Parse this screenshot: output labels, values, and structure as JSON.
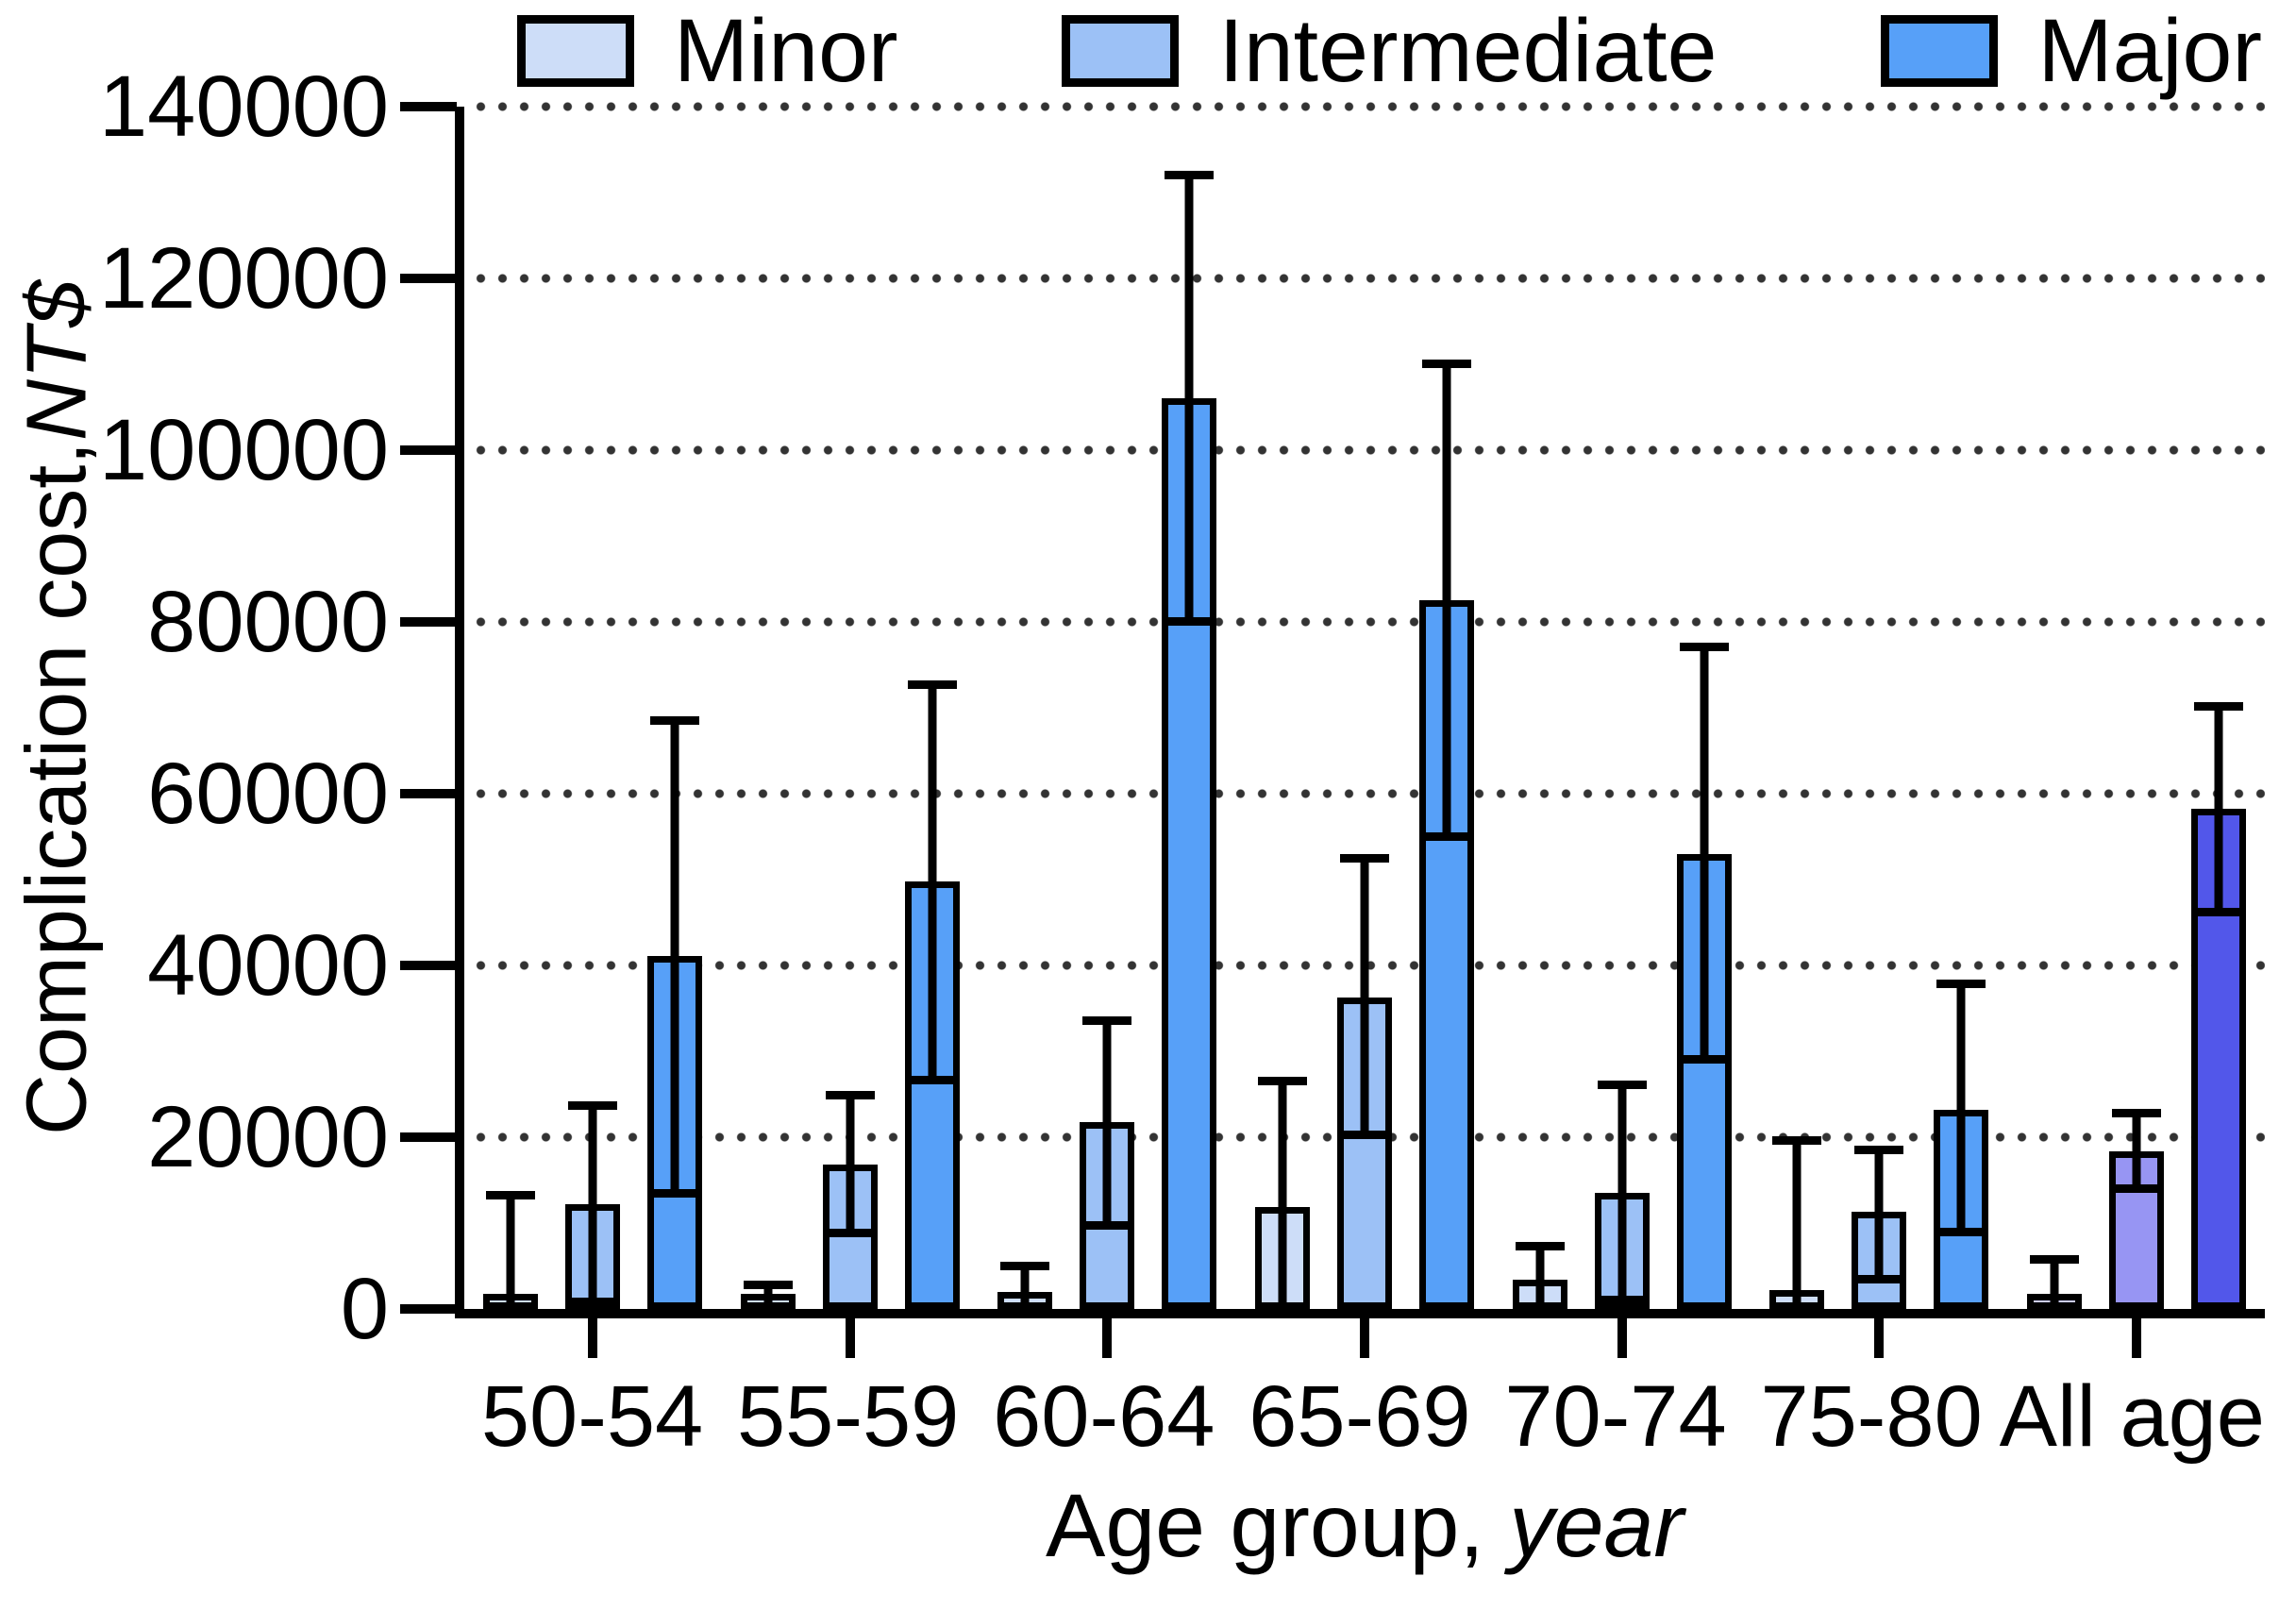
{
  "y_axis": {
    "title_regular": "Complication cost, ",
    "title_italic": "NT$",
    "tick_values": [
      0,
      20000,
      40000,
      60000,
      80000,
      100000,
      120000,
      140000
    ]
  },
  "x_axis": {
    "title_regular": "Age group, ",
    "title_italic": "year"
  },
  "legend": {
    "items": [
      "Minor",
      "Intermediate",
      "Major"
    ]
  },
  "colors": {
    "minor": "#cdddf8",
    "intermediate": "#9cc1f6",
    "major": "#57a0f8",
    "all_age_minor": "#cccdf8",
    "all_age_intermediate": "#9795f3",
    "all_age_major": "#5257ea",
    "axis": "#000000",
    "gridline_dot": "#333333"
  },
  "chart_data": {
    "type": "bar",
    "title": "",
    "xlabel": "Age group, year",
    "ylabel": "Complication cost, NT$",
    "ylim": [
      0,
      140000
    ],
    "ytick_step": 20000,
    "grid": "horizontal dotted",
    "legend_position": "top",
    "error_bars": true,
    "categories": [
      "50-54",
      "55-59",
      "60-64",
      "65-69",
      "70-74",
      "75-80",
      "All age"
    ],
    "series": [
      {
        "name": "Minor",
        "color": "#cdddf8",
        "all_age_color": "#cccdf8",
        "values": [
          1000,
          1400,
          2000,
          11900,
          3400,
          2200,
          1600
        ],
        "err_high": [
          13200,
          2800,
          5000,
          26500,
          7200,
          19600,
          5700
        ],
        "err_low": [
          null,
          null,
          null,
          null,
          null,
          null,
          null
        ]
      },
      {
        "name": "Intermediate",
        "color": "#9cc1f6",
        "all_age_color": "#9795f3",
        "values": [
          12200,
          16800,
          21800,
          36300,
          13500,
          11300,
          18400
        ],
        "err_high": [
          23600,
          24800,
          33500,
          52400,
          26000,
          18500,
          22800
        ],
        "err_low": [
          800,
          8800,
          9700,
          20200,
          1000,
          3400,
          14000
        ]
      },
      {
        "name": "Major",
        "color": "#57a0f8",
        "all_age_color": "#5257ea",
        "values": [
          41100,
          49800,
          106000,
          82500,
          53000,
          23200,
          58200
        ],
        "err_high": [
          68500,
          72600,
          132000,
          110000,
          77000,
          37800,
          70100
        ],
        "err_low": [
          13400,
          26600,
          80000,
          55000,
          29000,
          8900,
          46200
        ]
      }
    ]
  }
}
